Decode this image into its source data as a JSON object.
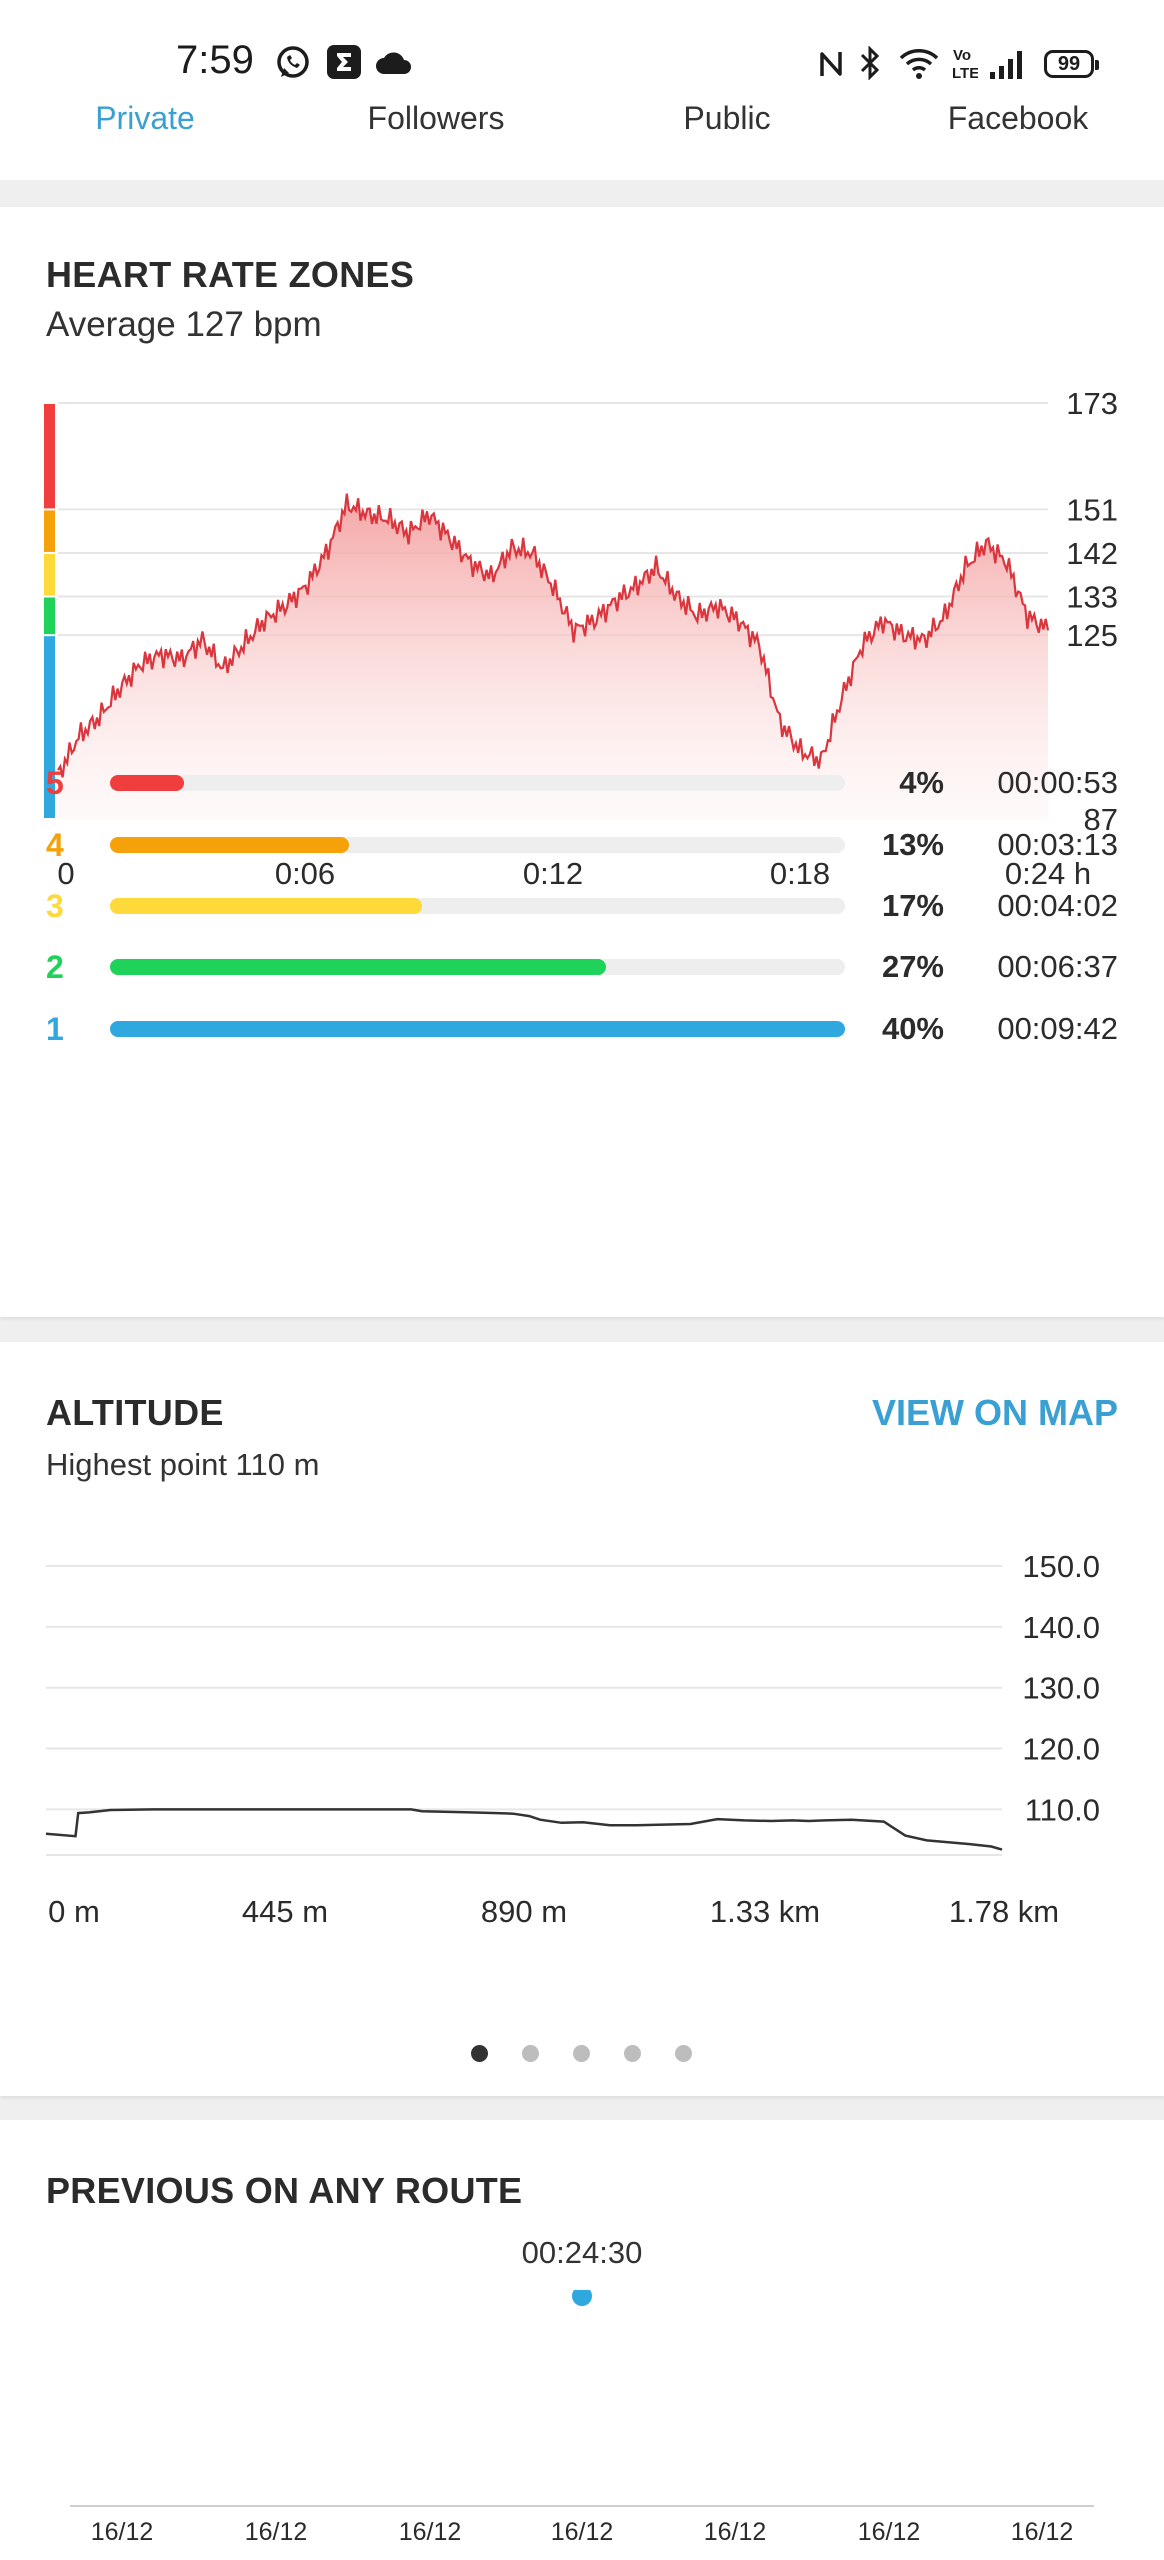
{
  "status_bar": {
    "time": "7:59",
    "battery": "99"
  },
  "share_tabs": [
    "Private",
    "Followers",
    "Public",
    "Facebook"
  ],
  "heart_rate": {
    "title": "HEART RATE ZONES",
    "subtitle": "Average 127 bpm",
    "zones": [
      {
        "num": "5",
        "percent": "4%",
        "fraction": 0.04,
        "time": "00:00:53",
        "color": "#f03e3e"
      },
      {
        "num": "4",
        "percent": "13%",
        "fraction": 0.13,
        "time": "00:03:13",
        "color": "#f5a10a"
      },
      {
        "num": "3",
        "percent": "17%",
        "fraction": 0.17,
        "time": "00:04:02",
        "color": "#fdda3a"
      },
      {
        "num": "2",
        "percent": "27%",
        "fraction": 0.27,
        "time": "00:06:37",
        "color": "#1ed25a"
      },
      {
        "num": "1",
        "percent": "40%",
        "fraction": 0.4,
        "time": "00:09:42",
        "color": "#2ea8df"
      }
    ]
  },
  "altitude": {
    "title": "ALTITUDE",
    "subtitle": "Highest point 110 m",
    "view_on_map": "VIEW ON MAP",
    "page_dots": 5,
    "active_dot": 0
  },
  "previous": {
    "title": "PREVIOUS ON ANY ROUTE",
    "value": "00:24:30",
    "x_labels": [
      "16/12",
      "16/12",
      "16/12",
      "16/12",
      "16/12",
      "16/12",
      "16/12"
    ],
    "accent": "#2ea8df"
  },
  "chart_data": [
    {
      "type": "area",
      "name": "heart-rate",
      "y_ticks": [
        87,
        125,
        133,
        142,
        151,
        173
      ],
      "x_ticks": [
        "0",
        "0:06",
        "0:12",
        "0:18",
        "0:24 h"
      ],
      "ylim": [
        87,
        173
      ],
      "xlim": [
        0,
        24
      ],
      "zone_bands": [
        {
          "from": 151,
          "to": 173,
          "color": "#f03e3e"
        },
        {
          "from": 142,
          "to": 151,
          "color": "#f5a10a"
        },
        {
          "from": 133,
          "to": 142,
          "color": "#fdda3a"
        },
        {
          "from": 125,
          "to": 133,
          "color": "#1ed25a"
        },
        {
          "from": 87,
          "to": 125,
          "color": "#2ea8df"
        }
      ],
      "x": [
        0,
        0.5,
        1,
        1.5,
        2,
        2.5,
        3,
        3.5,
        4,
        4.5,
        5,
        5.5,
        6,
        6.5,
        7,
        7.5,
        8,
        8.5,
        9,
        9.5,
        10,
        10.5,
        11,
        11.5,
        12,
        12.5,
        13,
        13.5,
        14,
        14.5,
        15,
        15.5,
        16,
        16.5,
        17,
        17.5,
        18,
        18.5,
        19,
        19.5,
        20,
        20.5,
        21,
        21.5,
        22,
        22.5,
        23,
        23.5,
        24
      ],
      "y": [
        96,
        104,
        108,
        114,
        119,
        121,
        120,
        124,
        118,
        123,
        128,
        131,
        135,
        142,
        152,
        150,
        149,
        146,
        150,
        145,
        140,
        137,
        143,
        142,
        135,
        126,
        128,
        132,
        135,
        139,
        133,
        129,
        131,
        128,
        123,
        107,
        101,
        99,
        112,
        123,
        128,
        125,
        124,
        129,
        139,
        144,
        140,
        129,
        126
      ],
      "color": "#d9363e"
    },
    {
      "type": "line",
      "name": "altitude",
      "y_ticks": [
        110.0,
        120.0,
        130.0,
        140.0,
        150.0
      ],
      "x_ticks": [
        "0 m",
        "445 m",
        "890 m",
        "1.33 km",
        "1.78 km"
      ],
      "ylim": [
        103,
        150
      ],
      "xlim": [
        0,
        1780
      ],
      "x": [
        0,
        55,
        60,
        80,
        120,
        200,
        300,
        400,
        500,
        600,
        680,
        700,
        740,
        790,
        840,
        870,
        900,
        920,
        960,
        1000,
        1050,
        1100,
        1150,
        1200,
        1250,
        1300,
        1350,
        1390,
        1420,
        1450,
        1500,
        1560,
        1600,
        1640,
        1680,
        1720,
        1760,
        1780
      ],
      "y": [
        106.0,
        105.6,
        109.4,
        109.5,
        109.9,
        110.0,
        110.0,
        110.0,
        110.0,
        110.0,
        110.0,
        109.7,
        109.6,
        109.5,
        109.4,
        109.3,
        108.9,
        108.3,
        107.8,
        107.9,
        107.4,
        107.4,
        107.5,
        107.6,
        108.4,
        108.2,
        108.1,
        108.2,
        108.1,
        108.2,
        108.3,
        108.0,
        105.7,
        104.9,
        104.6,
        104.3,
        103.9,
        103.4
      ],
      "color": "#333333"
    }
  ]
}
